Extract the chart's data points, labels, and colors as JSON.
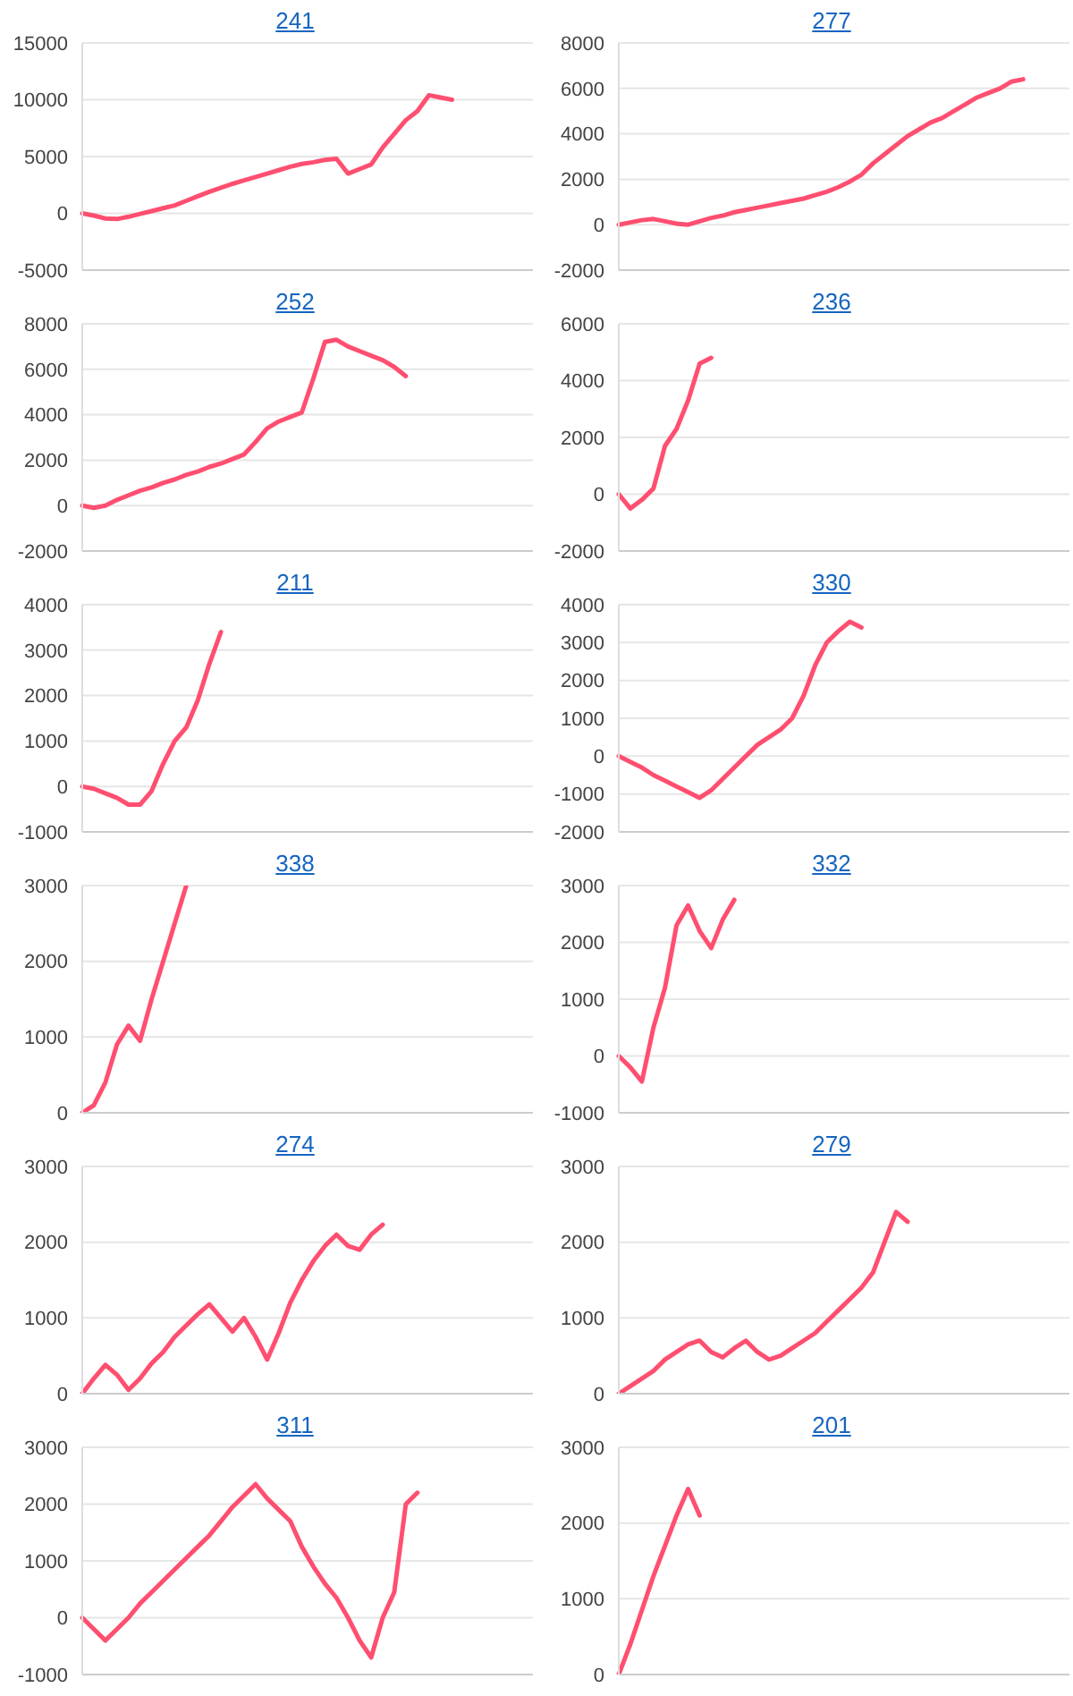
{
  "chart_data": [
    {
      "type": "line",
      "title": "241",
      "categories": [
        null,
        null,
        null,
        null,
        null,
        null,
        null,
        null,
        null,
        null,
        null,
        null,
        null,
        null,
        null,
        null,
        null,
        null,
        null,
        null,
        null,
        null,
        null,
        null,
        null,
        null,
        null,
        null,
        null,
        null,
        null,
        null,
        null,
        null,
        null,
        null,
        null,
        null,
        null,
        null
      ],
      "series": [
        {
          "color": "#ff4f70",
          "values": [
            0,
            -200,
            -450,
            -500,
            -300,
            -50,
            200,
            450,
            700,
            1100,
            1500,
            1900,
            2250,
            2600,
            2900,
            3200,
            3500,
            3800,
            4100,
            4350,
            4500,
            4700,
            4800,
            3500,
            3900,
            4300,
            5800,
            7000,
            8200,
            9000,
            10400,
            10200,
            10000,
            null,
            null,
            null,
            null,
            null,
            null,
            null
          ]
        }
      ],
      "ylim": [
        -5000,
        15000
      ],
      "yticks": [
        -5000,
        0,
        5000,
        10000,
        15000
      ],
      "grid": "y",
      "tick_labels": "y",
      "marker": "none",
      "line_style": "solid"
    },
    {
      "type": "line",
      "title": "277",
      "categories": [
        null,
        null,
        null,
        null,
        null,
        null,
        null,
        null,
        null,
        null,
        null,
        null,
        null,
        null,
        null,
        null,
        null,
        null,
        null,
        null,
        null,
        null,
        null,
        null,
        null,
        null,
        null,
        null,
        null,
        null,
        null,
        null,
        null,
        null,
        null,
        null,
        null,
        null,
        null,
        null
      ],
      "series": [
        {
          "color": "#ff4f70",
          "values": [
            0,
            100,
            200,
            250,
            150,
            50,
            0,
            150,
            300,
            400,
            550,
            650,
            750,
            850,
            950,
            1050,
            1150,
            1300,
            1450,
            1650,
            1900,
            2200,
            2700,
            3100,
            3500,
            3900,
            4200,
            4500,
            4700,
            5000,
            5300,
            5600,
            5800,
            6000,
            6300,
            6400,
            null,
            null,
            null,
            null
          ]
        }
      ],
      "ylim": [
        -2000,
        8000
      ],
      "yticks": [
        -2000,
        0,
        2000,
        4000,
        6000,
        8000
      ],
      "grid": "y",
      "tick_labels": "y",
      "marker": "none",
      "line_style": "solid"
    },
    {
      "type": "line",
      "title": "252",
      "categories": [
        null,
        null,
        null,
        null,
        null,
        null,
        null,
        null,
        null,
        null,
        null,
        null,
        null,
        null,
        null,
        null,
        null,
        null,
        null,
        null,
        null,
        null,
        null,
        null,
        null,
        null,
        null,
        null,
        null,
        null,
        null,
        null,
        null,
        null,
        null,
        null,
        null,
        null,
        null,
        null
      ],
      "series": [
        {
          "color": "#ff4f70",
          "values": [
            0,
            -100,
            0,
            250,
            450,
            650,
            800,
            1000,
            1150,
            1350,
            1500,
            1700,
            1850,
            2050,
            2250,
            2800,
            3400,
            3700,
            3900,
            4100,
            5600,
            7200,
            7300,
            7000,
            6800,
            6600,
            6400,
            6100,
            5700,
            null,
            null,
            null,
            null,
            null,
            null,
            null,
            null,
            null,
            null,
            null
          ]
        }
      ],
      "ylim": [
        -2000,
        8000
      ],
      "yticks": [
        -2000,
        0,
        2000,
        4000,
        6000,
        8000
      ],
      "grid": "y",
      "tick_labels": "y",
      "marker": "none",
      "line_style": "solid"
    },
    {
      "type": "line",
      "title": "236",
      "categories": [
        null,
        null,
        null,
        null,
        null,
        null,
        null,
        null,
        null,
        null,
        null,
        null,
        null,
        null,
        null,
        null,
        null,
        null,
        null,
        null,
        null,
        null,
        null,
        null,
        null,
        null,
        null,
        null,
        null,
        null,
        null,
        null,
        null,
        null,
        null,
        null,
        null,
        null,
        null,
        null
      ],
      "series": [
        {
          "color": "#ff4f70",
          "values": [
            0,
            -500,
            -200,
            200,
            1700,
            2300,
            3300,
            4600,
            4800,
            null,
            null,
            null,
            null,
            null,
            null,
            null,
            null,
            null,
            null,
            null,
            null,
            null,
            null,
            null,
            null,
            null,
            null,
            null,
            null,
            null,
            null,
            null,
            null,
            null,
            null,
            null,
            null,
            null,
            null,
            null
          ]
        }
      ],
      "ylim": [
        -2000,
        6000
      ],
      "yticks": [
        -2000,
        0,
        2000,
        4000,
        6000
      ],
      "grid": "y",
      "tick_labels": "y",
      "marker": "none",
      "line_style": "solid"
    },
    {
      "type": "line",
      "title": "211",
      "categories": [
        null,
        null,
        null,
        null,
        null,
        null,
        null,
        null,
        null,
        null,
        null,
        null,
        null,
        null,
        null,
        null,
        null,
        null,
        null,
        null,
        null,
        null,
        null,
        null,
        null,
        null,
        null,
        null,
        null,
        null,
        null,
        null,
        null,
        null,
        null,
        null,
        null,
        null,
        null,
        null
      ],
      "series": [
        {
          "color": "#ff4f70",
          "values": [
            0,
            -50,
            -150,
            -250,
            -400,
            -400,
            -100,
            500,
            1000,
            1300,
            1900,
            2700,
            3400,
            null,
            null,
            null,
            null,
            null,
            null,
            null,
            null,
            null,
            null,
            null,
            null,
            null,
            null,
            null,
            null,
            null,
            null,
            null,
            null,
            null,
            null,
            null,
            null,
            null,
            null,
            null
          ]
        }
      ],
      "ylim": [
        -1000,
        4000
      ],
      "yticks": [
        -1000,
        0,
        1000,
        2000,
        3000,
        4000
      ],
      "grid": "y",
      "tick_labels": "y",
      "marker": "none",
      "line_style": "solid"
    },
    {
      "type": "line",
      "title": "330",
      "categories": [
        null,
        null,
        null,
        null,
        null,
        null,
        null,
        null,
        null,
        null,
        null,
        null,
        null,
        null,
        null,
        null,
        null,
        null,
        null,
        null,
        null,
        null,
        null,
        null,
        null,
        null,
        null,
        null,
        null,
        null,
        null,
        null,
        null,
        null,
        null,
        null,
        null,
        null,
        null,
        null
      ],
      "series": [
        {
          "color": "#ff4f70",
          "values": [
            0,
            -150,
            -300,
            -500,
            -650,
            -800,
            -950,
            -1100,
            -900,
            -600,
            -300,
            0,
            300,
            500,
            700,
            1000,
            1600,
            2400,
            3000,
            3300,
            3550,
            3400,
            null,
            null,
            null,
            null,
            null,
            null,
            null,
            null,
            null,
            null,
            null,
            null,
            null,
            null,
            null,
            null,
            null,
            null
          ]
        }
      ],
      "ylim": [
        -2000,
        4000
      ],
      "yticks": [
        -2000,
        -1000,
        0,
        1000,
        2000,
        3000,
        4000
      ],
      "grid": "y",
      "tick_labels": "y",
      "marker": "none",
      "line_style": "solid"
    },
    {
      "type": "line",
      "title": "338",
      "categories": [
        null,
        null,
        null,
        null,
        null,
        null,
        null,
        null,
        null,
        null,
        null,
        null,
        null,
        null,
        null,
        null,
        null,
        null,
        null,
        null,
        null,
        null,
        null,
        null,
        null,
        null,
        null,
        null,
        null,
        null,
        null,
        null,
        null,
        null,
        null,
        null,
        null,
        null,
        null,
        null
      ],
      "series": [
        {
          "color": "#ff4f70",
          "values": [
            0,
            100,
            400,
            900,
            1150,
            950,
            1500,
            2000,
            2500,
            3000,
            null,
            null,
            null,
            null,
            null,
            null,
            null,
            null,
            null,
            null,
            null,
            null,
            null,
            null,
            null,
            null,
            null,
            null,
            null,
            null,
            null,
            null,
            null,
            null,
            null,
            null,
            null,
            null,
            null,
            null
          ]
        }
      ],
      "ylim": [
        0,
        3000
      ],
      "yticks": [
        0,
        1000,
        2000,
        3000
      ],
      "grid": "y",
      "tick_labels": "y",
      "marker": "none",
      "line_style": "solid"
    },
    {
      "type": "line",
      "title": "332",
      "categories": [
        null,
        null,
        null,
        null,
        null,
        null,
        null,
        null,
        null,
        null,
        null,
        null,
        null,
        null,
        null,
        null,
        null,
        null,
        null,
        null,
        null,
        null,
        null,
        null,
        null,
        null,
        null,
        null,
        null,
        null,
        null,
        null,
        null,
        null,
        null,
        null,
        null,
        null,
        null,
        null
      ],
      "series": [
        {
          "color": "#ff4f70",
          "values": [
            0,
            -200,
            -450,
            500,
            1200,
            2300,
            2650,
            2200,
            1900,
            2400,
            2750,
            null,
            null,
            null,
            null,
            null,
            null,
            null,
            null,
            null,
            null,
            null,
            null,
            null,
            null,
            null,
            null,
            null,
            null,
            null,
            null,
            null,
            null,
            null,
            null,
            null,
            null,
            null,
            null,
            null
          ]
        }
      ],
      "ylim": [
        -1000,
        3000
      ],
      "yticks": [
        -1000,
        0,
        1000,
        2000,
        3000
      ],
      "grid": "y",
      "tick_labels": "y",
      "marker": "none",
      "line_style": "solid"
    },
    {
      "type": "line",
      "title": "274",
      "categories": [
        null,
        null,
        null,
        null,
        null,
        null,
        null,
        null,
        null,
        null,
        null,
        null,
        null,
        null,
        null,
        null,
        null,
        null,
        null,
        null,
        null,
        null,
        null,
        null,
        null,
        null,
        null,
        null,
        null,
        null,
        null,
        null,
        null,
        null,
        null,
        null,
        null,
        null,
        null,
        null
      ],
      "series": [
        {
          "color": "#ff4f70",
          "values": [
            0,
            200,
            380,
            250,
            50,
            200,
            400,
            550,
            750,
            900,
            1050,
            1180,
            1000,
            820,
            1000,
            750,
            450,
            800,
            1200,
            1500,
            1750,
            1950,
            2100,
            1950,
            1900,
            2100,
            2230,
            null,
            null,
            null,
            null,
            null,
            null,
            null,
            null,
            null,
            null,
            null,
            null,
            null
          ]
        }
      ],
      "ylim": [
        0,
        3000
      ],
      "yticks": [
        0,
        1000,
        2000,
        3000
      ],
      "grid": "y",
      "tick_labels": "y",
      "marker": "none",
      "line_style": "solid"
    },
    {
      "type": "line",
      "title": "279",
      "categories": [
        null,
        null,
        null,
        null,
        null,
        null,
        null,
        null,
        null,
        null,
        null,
        null,
        null,
        null,
        null,
        null,
        null,
        null,
        null,
        null,
        null,
        null,
        null,
        null,
        null,
        null,
        null,
        null,
        null,
        null,
        null,
        null,
        null,
        null,
        null,
        null,
        null,
        null,
        null,
        null
      ],
      "series": [
        {
          "color": "#ff4f70",
          "values": [
            0,
            100,
            200,
            300,
            450,
            550,
            650,
            700,
            550,
            480,
            600,
            700,
            550,
            450,
            500,
            600,
            700,
            800,
            950,
            1100,
            1250,
            1400,
            1600,
            2000,
            2400,
            2270,
            null,
            null,
            null,
            null,
            null,
            null,
            null,
            null,
            null,
            null,
            null,
            null,
            null,
            null
          ]
        }
      ],
      "ylim": [
        0,
        3000
      ],
      "yticks": [
        0,
        1000,
        2000,
        3000
      ],
      "grid": "y",
      "tick_labels": "y",
      "marker": "none",
      "line_style": "solid"
    },
    {
      "type": "line",
      "title": "311",
      "categories": [
        null,
        null,
        null,
        null,
        null,
        null,
        null,
        null,
        null,
        null,
        null,
        null,
        null,
        null,
        null,
        null,
        null,
        null,
        null,
        null,
        null,
        null,
        null,
        null,
        null,
        null,
        null,
        null,
        null,
        null,
        null,
        null,
        null,
        null,
        null,
        null,
        null,
        null,
        null,
        null
      ],
      "series": [
        {
          "color": "#ff4f70",
          "values": [
            0,
            -200,
            -400,
            -200,
            0,
            250,
            450,
            650,
            850,
            1050,
            1250,
            1450,
            1700,
            1950,
            2150,
            2350,
            2100,
            1900,
            1700,
            1250,
            900,
            600,
            350,
            0,
            -400,
            -700,
            0,
            450,
            2000,
            2200,
            null,
            null,
            null,
            null,
            null,
            null,
            null,
            null,
            null,
            null
          ]
        }
      ],
      "ylim": [
        -1000,
        3000
      ],
      "yticks": [
        -1000,
        0,
        1000,
        2000,
        3000
      ],
      "grid": "y",
      "tick_labels": "y",
      "marker": "none",
      "line_style": "solid"
    },
    {
      "type": "line",
      "title": "201",
      "categories": [
        null,
        null,
        null,
        null,
        null,
        null,
        null,
        null,
        null,
        null,
        null,
        null,
        null,
        null,
        null,
        null,
        null,
        null,
        null,
        null,
        null,
        null,
        null,
        null,
        null,
        null,
        null,
        null,
        null,
        null,
        null,
        null,
        null,
        null,
        null,
        null,
        null,
        null,
        null,
        null
      ],
      "series": [
        {
          "color": "#ff4f70",
          "values": [
            0,
            400,
            850,
            1300,
            1700,
            2100,
            2450,
            2100,
            null,
            null,
            null,
            null,
            null,
            null,
            null,
            null,
            null,
            null,
            null,
            null,
            null,
            null,
            null,
            null,
            null,
            null,
            null,
            null,
            null,
            null,
            null,
            null,
            null,
            null,
            null,
            null,
            null,
            null,
            null,
            null
          ]
        }
      ],
      "ylim": [
        0,
        3000
      ],
      "yticks": [
        0,
        1000,
        2000,
        3000
      ],
      "grid": "y",
      "tick_labels": "y",
      "marker": "none",
      "line_style": "solid"
    }
  ]
}
